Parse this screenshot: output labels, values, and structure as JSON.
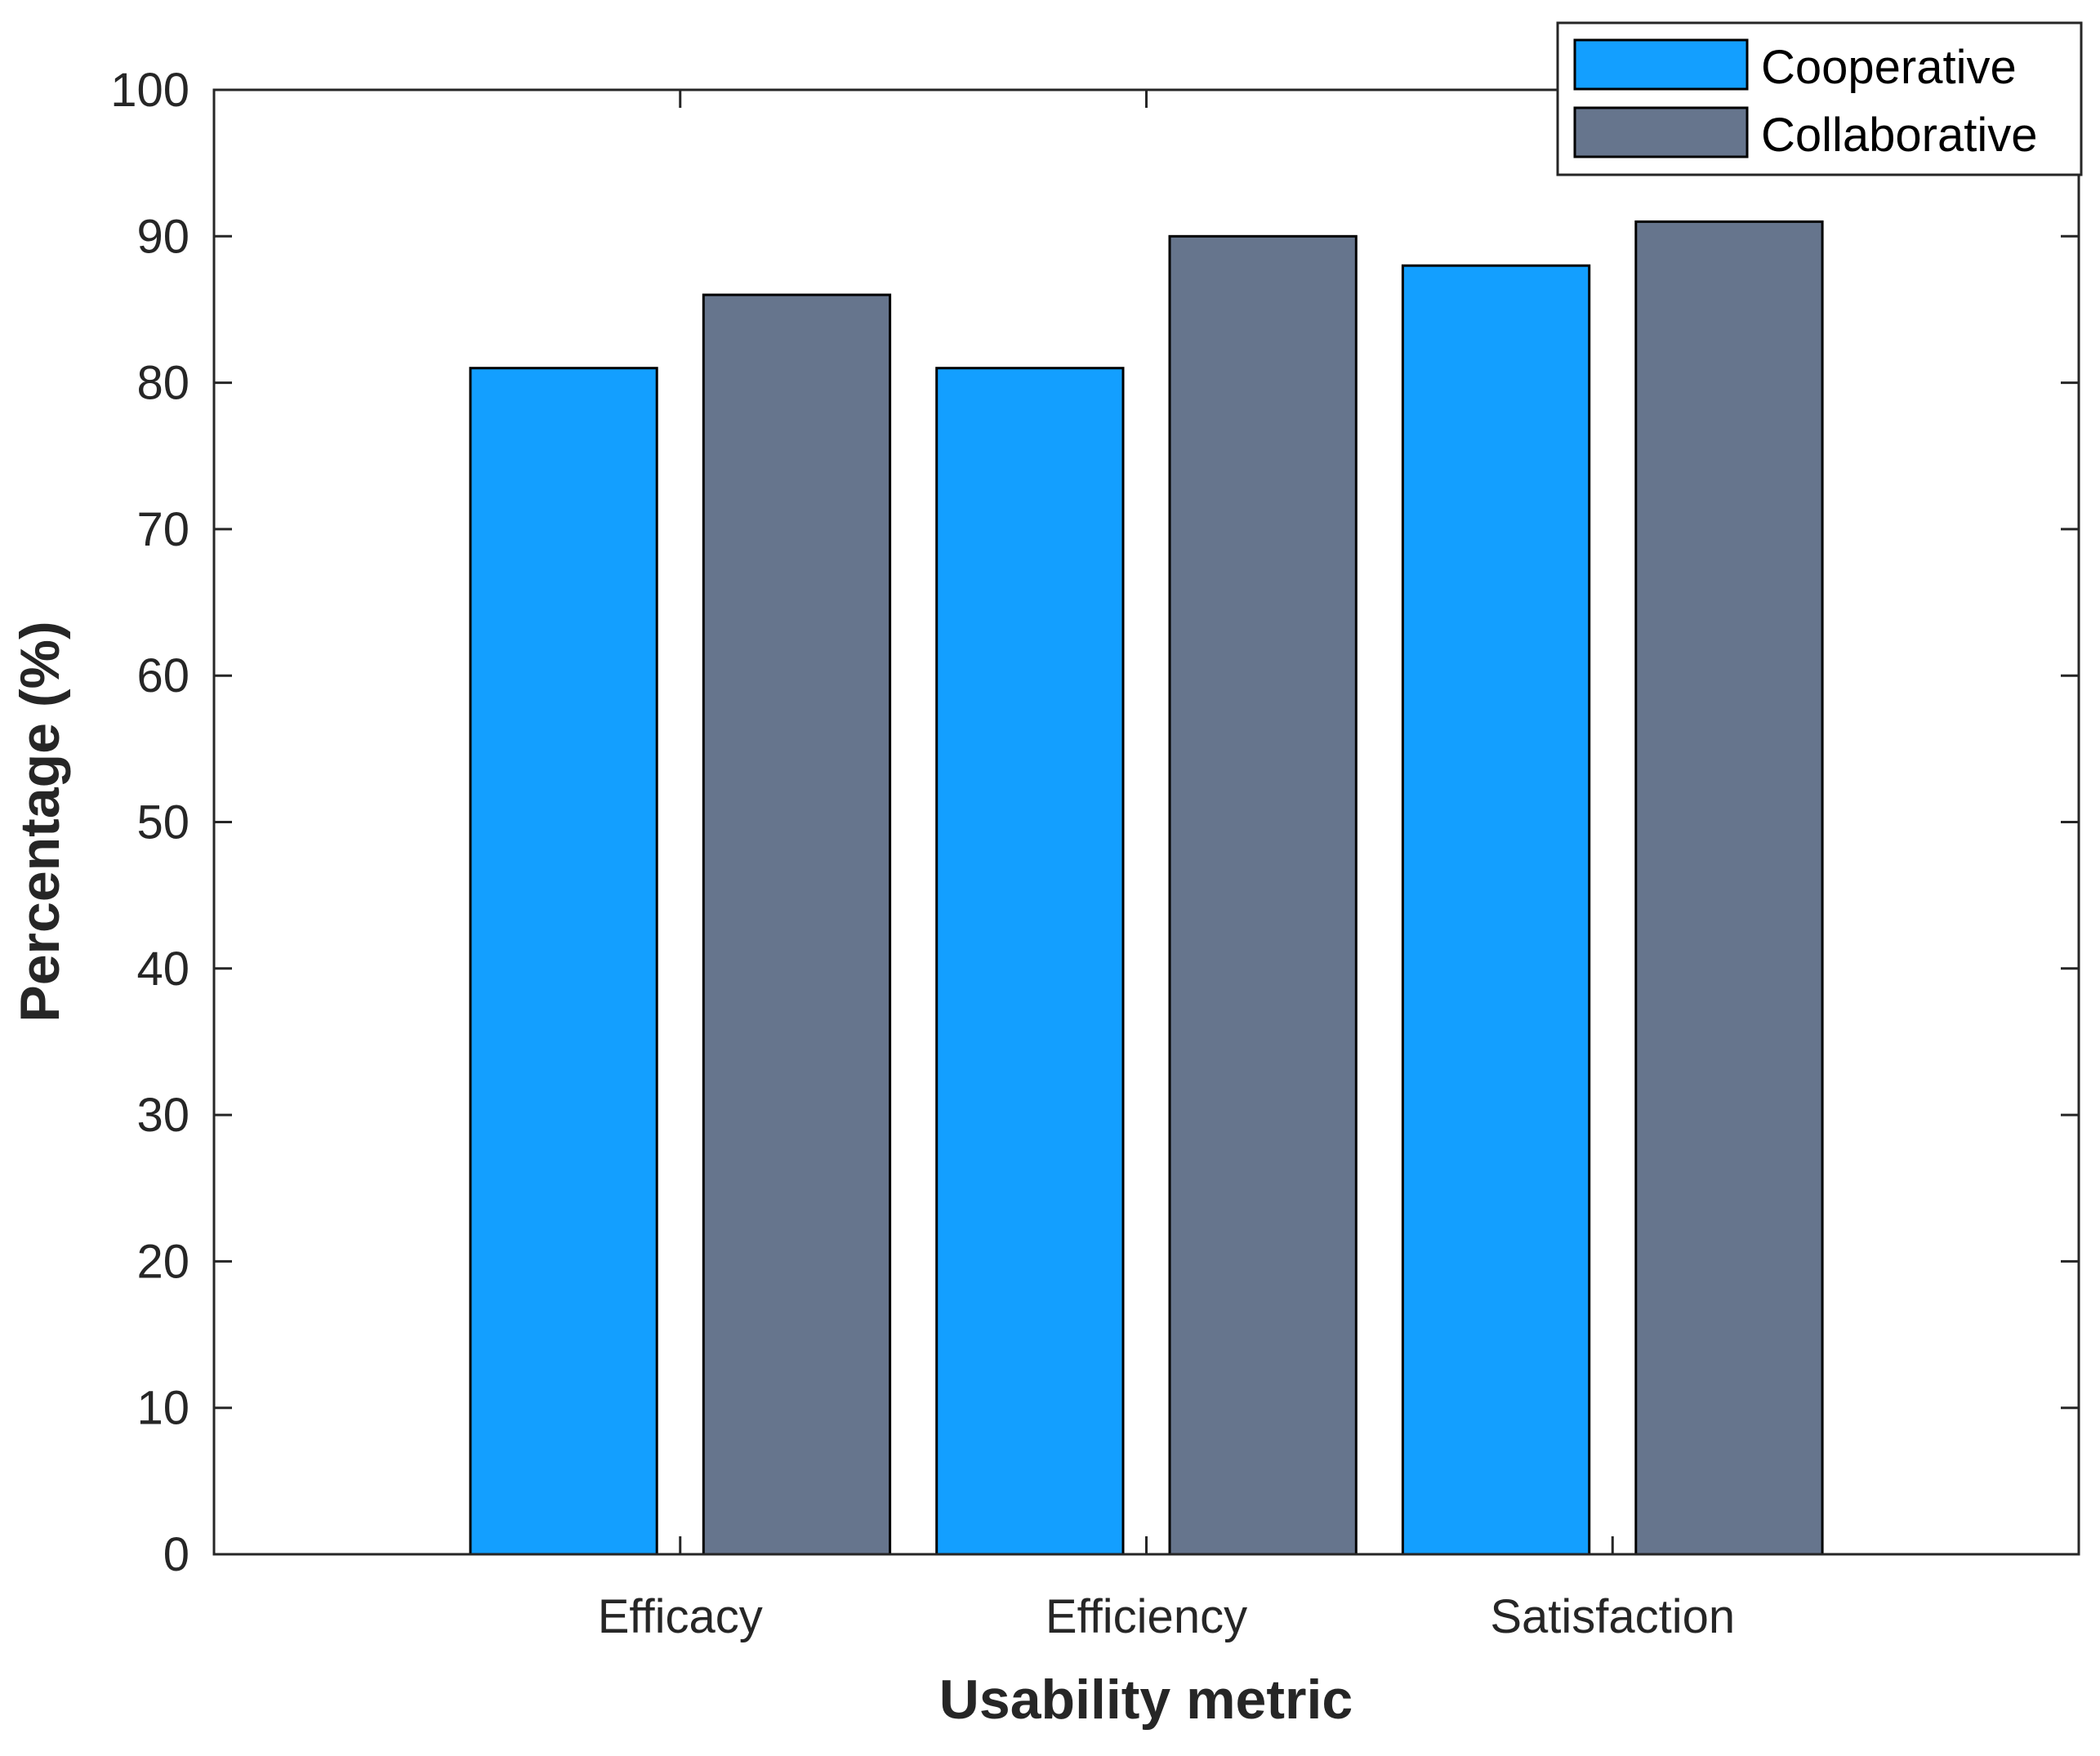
{
  "chart_data": {
    "type": "bar",
    "title": "",
    "xlabel": "Usability metric",
    "ylabel": "Percentage (%)",
    "ylim": [
      0,
      100
    ],
    "yticks": [
      0,
      10,
      20,
      30,
      40,
      50,
      60,
      70,
      80,
      90,
      100
    ],
    "ytick_labels": [
      "0",
      "10",
      "20",
      "30",
      "40",
      "50",
      "60",
      "70",
      "80",
      "90",
      "100"
    ],
    "categories": [
      "Efficacy",
      "Efficiency",
      "Satisfaction"
    ],
    "series": [
      {
        "name": "Cooperative",
        "color": "#139FFF",
        "values": [
          81,
          81,
          88
        ]
      },
      {
        "name": "Collaborative",
        "color": "#66758D",
        "values": [
          86,
          90,
          91
        ]
      }
    ],
    "legend_position": "top-right",
    "grid": false
  }
}
